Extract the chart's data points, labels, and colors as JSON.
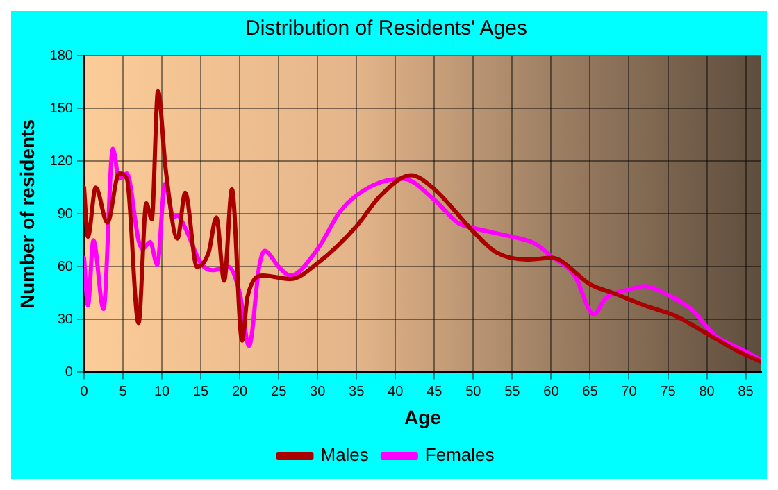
{
  "chart_data": {
    "type": "line",
    "title": "Distribution of Residents' Ages",
    "xlabel": "Age",
    "ylabel": "Number of residents",
    "xlim": [
      0,
      87
    ],
    "xticks": [
      0,
      5,
      10,
      15,
      20,
      25,
      30,
      35,
      40,
      45,
      50,
      55,
      60,
      65,
      70,
      75,
      80,
      85
    ],
    "ylim": [
      0,
      180
    ],
    "yticks": [
      0,
      30,
      60,
      90,
      120,
      150,
      180
    ],
    "grid": true,
    "legend": "bottom",
    "marker": "none",
    "line_style": "solid",
    "series": [
      {
        "name": "Males",
        "color": "#aa0000",
        "x": [
          0,
          0.5,
          1.5,
          3,
          4.5,
          5.5,
          7,
          8,
          8.7,
          9.5,
          10.5,
          12,
          13,
          14.5,
          16,
          17,
          18,
          19,
          20.3,
          21,
          23,
          26.5,
          30,
          35,
          38,
          42,
          45,
          50,
          53,
          57,
          60,
          61,
          65,
          68,
          72,
          76,
          80,
          84,
          87
        ],
        "values": [
          105,
          77,
          105,
          85,
          113,
          110,
          28,
          96,
          87,
          160,
          115,
          76,
          102,
          60,
          68,
          88,
          52,
          104,
          18,
          43,
          55,
          53,
          62,
          83,
          100,
          112,
          104,
          80,
          68,
          64,
          65,
          64,
          50,
          45,
          38,
          32,
          22,
          12,
          6
        ]
      },
      {
        "name": "Females",
        "color": "#ff00ff",
        "x": [
          0,
          0.5,
          1.2,
          2.5,
          3.7,
          4.5,
          5.5,
          7,
          7.5,
          8.5,
          9.4,
          10.4,
          11.5,
          12,
          13,
          15,
          16.5,
          18.5,
          20,
          21.2,
          22.5,
          23.2,
          25,
          26.5,
          30,
          33,
          37,
          41,
          45,
          48,
          50,
          55,
          58,
          60,
          63,
          65.5,
          67,
          70,
          72,
          75,
          78,
          81,
          84,
          87
        ],
        "values": [
          65,
          38,
          75,
          36,
          127,
          110,
          113,
          75,
          70,
          74,
          61,
          107,
          88,
          89,
          82,
          62,
          58,
          60,
          45,
          15,
          60,
          69,
          60,
          55,
          70,
          92,
          106,
          110,
          98,
          85,
          82,
          77,
          73,
          66,
          55,
          33,
          42,
          47,
          49,
          44,
          36,
          21,
          14,
          7
        ]
      }
    ]
  }
}
